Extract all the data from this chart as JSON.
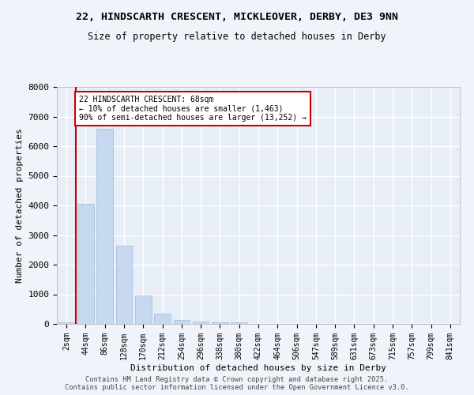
{
  "title_line1": "22, HINDSCARTH CRESCENT, MICKLEOVER, DERBY, DE3 9NN",
  "title_line2": "Size of property relative to detached houses in Derby",
  "xlabel": "Distribution of detached houses by size in Derby",
  "ylabel": "Number of detached properties",
  "categories": [
    "2sqm",
    "44sqm",
    "86sqm",
    "128sqm",
    "170sqm",
    "212sqm",
    "254sqm",
    "296sqm",
    "338sqm",
    "380sqm",
    "422sqm",
    "464sqm",
    "506sqm",
    "547sqm",
    "589sqm",
    "631sqm",
    "673sqm",
    "715sqm",
    "757sqm",
    "799sqm",
    "841sqm"
  ],
  "values": [
    60,
    4050,
    6600,
    2650,
    970,
    345,
    135,
    70,
    45,
    50,
    0,
    0,
    0,
    0,
    0,
    0,
    0,
    0,
    0,
    0,
    0
  ],
  "bar_color": "#c5d8f0",
  "bar_edge_color": "#a0b8d8",
  "vline_color": "#cc0000",
  "annotation_text": "22 HINDSCARTH CRESCENT: 68sqm\n← 10% of detached houses are smaller (1,463)\n90% of semi-detached houses are larger (13,252) →",
  "annotation_box_color": "#ffffff",
  "annotation_box_edge_color": "#cc0000",
  "ylim": [
    0,
    8000
  ],
  "yticks": [
    0,
    1000,
    2000,
    3000,
    4000,
    5000,
    6000,
    7000,
    8000
  ],
  "background_color": "#e8eef7",
  "grid_color": "#ffffff",
  "fig_background": "#f0f4fa",
  "footer_line1": "Contains HM Land Registry data © Crown copyright and database right 2025.",
  "footer_line2": "Contains public sector information licensed under the Open Government Licence v3.0."
}
